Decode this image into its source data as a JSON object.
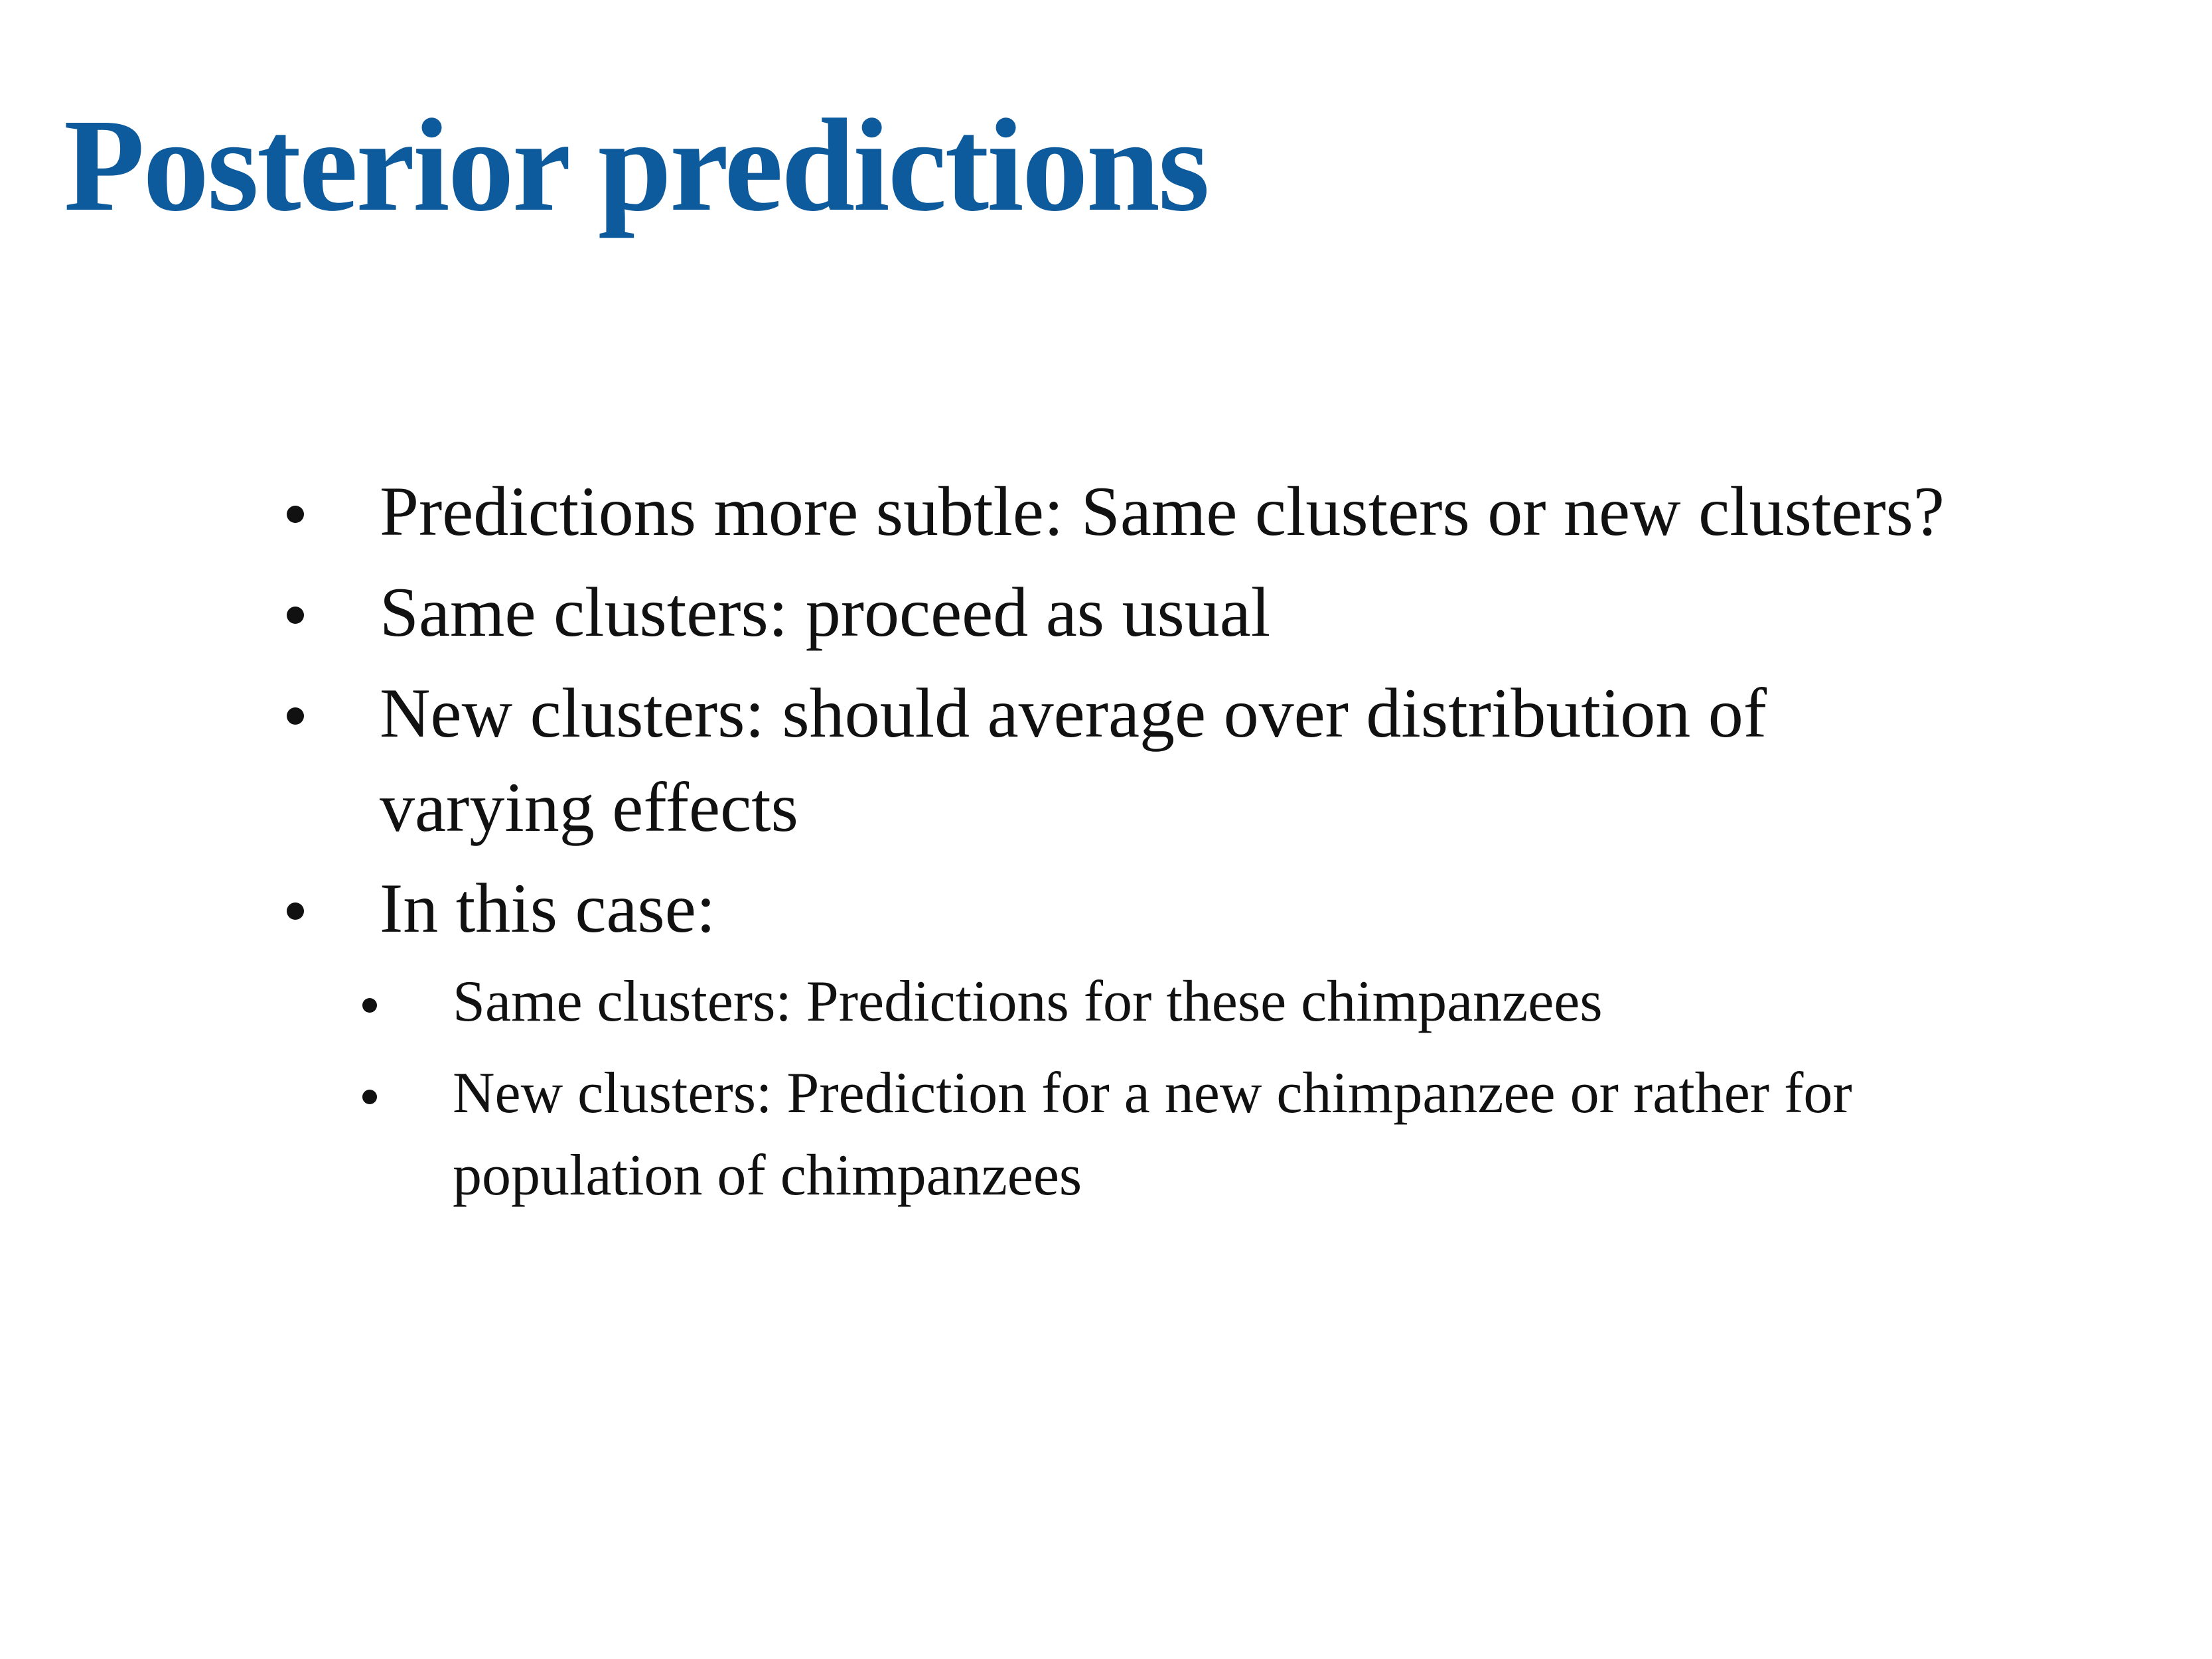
{
  "slide": {
    "title": "Posterior predictions",
    "title_color": "#0d5a9c",
    "bullets": [
      {
        "text": "Predictions more subtle: Same clusters or new clusters?"
      },
      {
        "text": "Same clusters: proceed as usual"
      },
      {
        "text": "New clusters: should average over distribution of varying effects"
      },
      {
        "text": "In this case:"
      }
    ],
    "sub_bullets": [
      {
        "text": "Same clusters: Predictions for these chimpanzees"
      },
      {
        "text": "New clusters: Prediction for a new chimpanzee or rather for population of chimpanzees"
      }
    ]
  }
}
